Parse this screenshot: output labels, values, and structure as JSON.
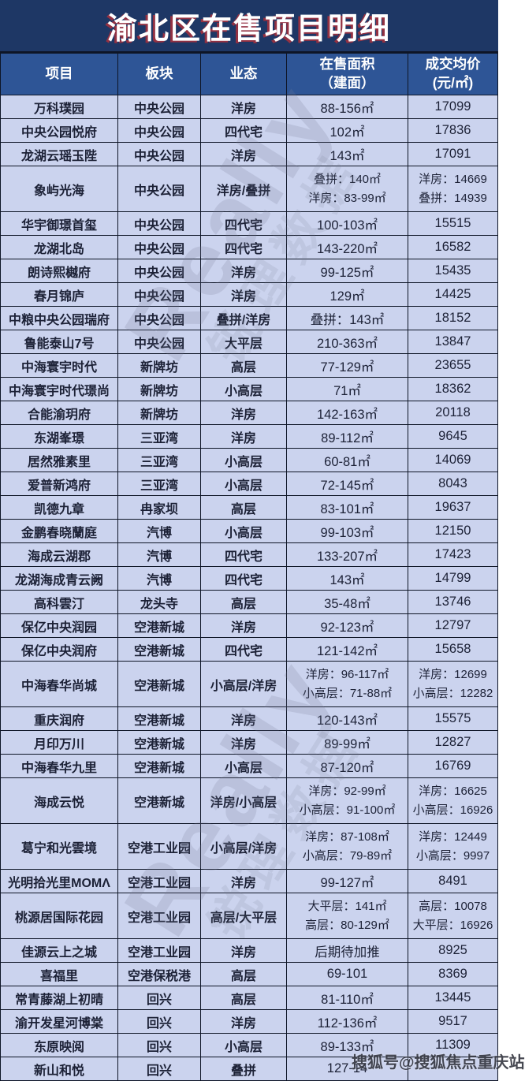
{
  "title": "渝北区在售项目明细",
  "colors": {
    "title_bg": "#1e3765",
    "title_text_shadow_red": "#a8303c",
    "header_bg": "#2e5596",
    "cell_bg": "#cbd3ee",
    "border": "#0e1526",
    "cell_text": "#1c2136"
  },
  "columns": [
    {
      "lines": [
        "项目"
      ]
    },
    {
      "lines": [
        "板块"
      ]
    },
    {
      "lines": [
        "业态"
      ]
    },
    {
      "lines": [
        "在售面积",
        "（建面）"
      ]
    },
    {
      "lines": [
        "成交均价",
        "(元/㎡)"
      ]
    }
  ],
  "rows": [
    {
      "project": "万科璞园",
      "district": "中央公园",
      "type": "洋房",
      "sizes": [
        "88-156㎡"
      ],
      "prices": [
        "17099"
      ]
    },
    {
      "project": "中央公园悦府",
      "district": "中央公园",
      "type": "四代宅",
      "sizes": [
        "102㎡"
      ],
      "prices": [
        "17836"
      ]
    },
    {
      "project": "龙湖云瑶玉陛",
      "district": "中央公园",
      "type": "洋房",
      "sizes": [
        "143㎡"
      ],
      "prices": [
        "17091"
      ]
    },
    {
      "project": "象屿光海",
      "district": "中央公园",
      "type": "洋房/叠拼",
      "sizes": [
        "叠拼：140㎡",
        "洋房：83-99㎡"
      ],
      "prices": [
        "洋房：14669",
        "叠拼：14939"
      ],
      "tall": true
    },
    {
      "project": "华宇御璟首玺",
      "district": "中央公园",
      "type": "四代宅",
      "sizes": [
        "100-103㎡"
      ],
      "prices": [
        "15515"
      ]
    },
    {
      "project": "龙湖北岛",
      "district": "中央公园",
      "type": "四代宅",
      "sizes": [
        "143-220㎡"
      ],
      "prices": [
        "16582"
      ]
    },
    {
      "project": "朗诗熙樾府",
      "district": "中央公园",
      "type": "洋房",
      "sizes": [
        "99-125㎡"
      ],
      "prices": [
        "15435"
      ]
    },
    {
      "project": "春月锦庐",
      "district": "中央公园",
      "type": "洋房",
      "sizes": [
        "129㎡"
      ],
      "prices": [
        "14425"
      ]
    },
    {
      "project": "中粮中央公园瑞府",
      "district": "中央公园",
      "type": "叠拼/洋房",
      "sizes": [
        "叠拼：143㎡"
      ],
      "prices": [
        "18152"
      ]
    },
    {
      "project": "鲁能泰山7号",
      "district": "中央公园",
      "type": "大平层",
      "sizes": [
        "210-363㎡"
      ],
      "prices": [
        "13847"
      ]
    },
    {
      "project": "中海寰宇时代",
      "district": "新牌坊",
      "type": "高层",
      "sizes": [
        "77-129㎡"
      ],
      "prices": [
        "23655"
      ]
    },
    {
      "project": "中海寰宇时代璟尚",
      "district": "新牌坊",
      "type": "小高层",
      "sizes": [
        "71㎡"
      ],
      "prices": [
        "18362"
      ]
    },
    {
      "project": "合能渝玥府",
      "district": "新牌坊",
      "type": "洋房",
      "sizes": [
        "142-163㎡"
      ],
      "prices": [
        "20118"
      ]
    },
    {
      "project": "东湖峯璟",
      "district": "三亚湾",
      "type": "洋房",
      "sizes": [
        "89-112㎡"
      ],
      "prices": [
        "9645"
      ]
    },
    {
      "project": "居然雅素里",
      "district": "三亚湾",
      "type": "小高层",
      "sizes": [
        "60-81㎡"
      ],
      "prices": [
        "14069"
      ]
    },
    {
      "project": "爱普新鸿府",
      "district": "三亚湾",
      "type": "小高层",
      "sizes": [
        "72-145㎡"
      ],
      "prices": [
        "8043"
      ]
    },
    {
      "project": "凯德九章",
      "district": "冉家坝",
      "type": "高层",
      "sizes": [
        "83-101㎡"
      ],
      "prices": [
        "19637"
      ]
    },
    {
      "project": "金鹏春晓蘭庭",
      "district": "汽博",
      "type": "小高层",
      "sizes": [
        "99-103㎡"
      ],
      "prices": [
        "12150"
      ]
    },
    {
      "project": "海成云湖郡",
      "district": "汽博",
      "type": "四代宅",
      "sizes": [
        "133-207㎡"
      ],
      "prices": [
        "17423"
      ]
    },
    {
      "project": "龙湖海成青云阙",
      "district": "汽博",
      "type": "四代宅",
      "sizes": [
        "143㎡"
      ],
      "prices": [
        "14799"
      ]
    },
    {
      "project": "高科雲汀",
      "district": "龙头寺",
      "type": "高层",
      "sizes": [
        "35-48㎡"
      ],
      "prices": [
        "13746"
      ]
    },
    {
      "project": "保亿中央润园",
      "district": "空港新城",
      "type": "洋房",
      "sizes": [
        "92-123㎡"
      ],
      "prices": [
        "12797"
      ]
    },
    {
      "project": "保亿中央润府",
      "district": "空港新城",
      "type": "四代宅",
      "sizes": [
        "121-142㎡"
      ],
      "prices": [
        "15658"
      ]
    },
    {
      "project": "中海春华尚城",
      "district": "空港新城",
      "type": "小高层/洋房",
      "sizes": [
        "洋房：96-117㎡",
        "小高层：71-88㎡"
      ],
      "prices": [
        "洋房：12699",
        "小高层：12282"
      ],
      "tall": true
    },
    {
      "project": "重庆润府",
      "district": "空港新城",
      "type": "洋房",
      "sizes": [
        "120-143㎡"
      ],
      "prices": [
        "15575"
      ]
    },
    {
      "project": "月印万川",
      "district": "空港新城",
      "type": "洋房",
      "sizes": [
        "89-99㎡"
      ],
      "prices": [
        "12827"
      ]
    },
    {
      "project": "中海春华九里",
      "district": "空港新城",
      "type": "小高层",
      "sizes": [
        "87-120㎡"
      ],
      "prices": [
        "16769"
      ]
    },
    {
      "project": "海成云悦",
      "district": "空港新城",
      "type": "洋房/小高层",
      "sizes": [
        "洋房：92-99㎡",
        "小高层：91-100㎡"
      ],
      "prices": [
        "洋房：16625",
        "小高层：16926"
      ],
      "tall": true
    },
    {
      "project": "葛宁和光雲境",
      "district": "空港工业园",
      "type": "小高层/洋房",
      "sizes": [
        "洋房：87-108㎡",
        "小高层：79-89㎡"
      ],
      "prices": [
        "洋房：12449",
        "小高层：9997"
      ],
      "tall": true
    },
    {
      "project": "光明拾光里MOMΛ",
      "district": "空港工业园",
      "type": "洋房",
      "sizes": [
        "99-127㎡"
      ],
      "prices": [
        "8491"
      ]
    },
    {
      "project": "桃源居国际花园",
      "district": "空港工业园",
      "type": "高层/大平层",
      "sizes": [
        "大平层：141㎡",
        "高层：80-129㎡"
      ],
      "prices": [
        "高层：10078",
        "大平层：16926"
      ],
      "tall": true
    },
    {
      "project": "佳源云上之城",
      "district": "空港工业园",
      "type": "洋房",
      "sizes": [
        "后期待加推"
      ],
      "prices": [
        "8925"
      ]
    },
    {
      "project": "喜福里",
      "district": "空港保税港",
      "type": "高层",
      "sizes": [
        "69-101"
      ],
      "prices": [
        "8369"
      ]
    },
    {
      "project": "常青藤湖上初晴",
      "district": "回兴",
      "type": "高层",
      "sizes": [
        "81-110㎡"
      ],
      "prices": [
        "13445"
      ]
    },
    {
      "project": "渝开发星河博棠",
      "district": "回兴",
      "type": "洋房",
      "sizes": [
        "112-136㎡"
      ],
      "prices": [
        "9517"
      ]
    },
    {
      "project": "东原映阅",
      "district": "回兴",
      "type": "小高层",
      "sizes": [
        "89-133㎡"
      ],
      "prices": [
        "11309"
      ]
    },
    {
      "project": "新山和悦",
      "district": "回兴",
      "type": "叠拼",
      "sizes": [
        "127-14"
      ],
      "prices": [
        ""
      ]
    }
  ],
  "watermarks": {
    "diagonal_en": "Really",
    "diagonal_cn": "锐理数据",
    "footer": "搜狐号@搜狐焦点重庆站"
  }
}
